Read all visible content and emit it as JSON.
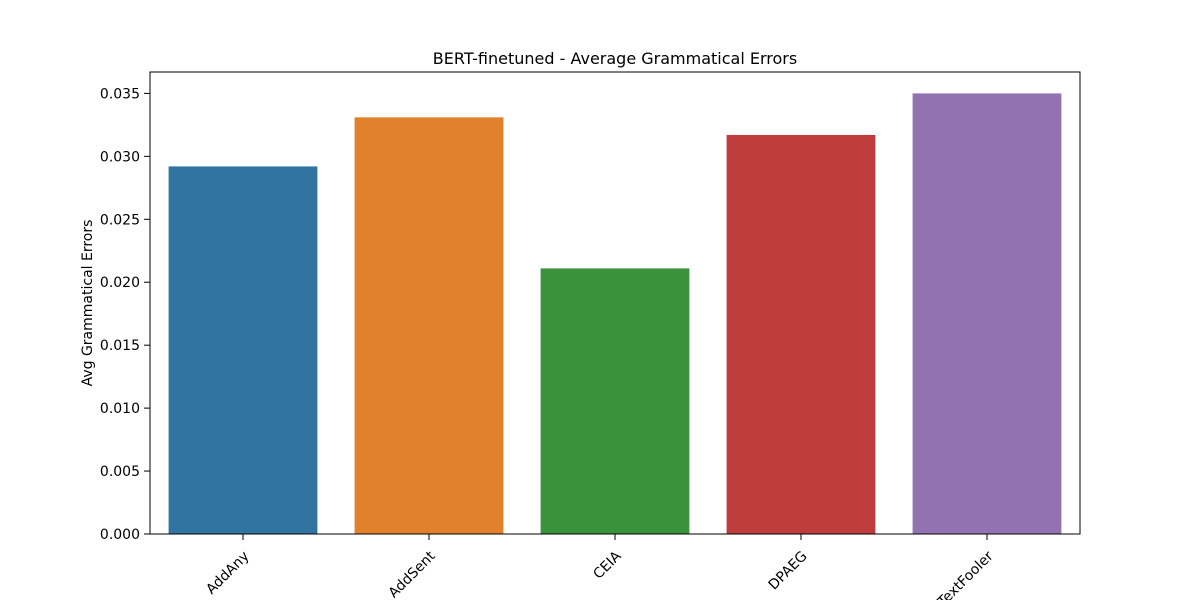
{
  "chart_data": {
    "type": "bar",
    "title": "BERT-finetuned - Average Grammatical Errors",
    "xlabel": "",
    "ylabel": "Avg Grammatical Errors",
    "categories": [
      "AddAny",
      "AddSent",
      "CEIA",
      "DPAEG",
      "TextFooler"
    ],
    "values": [
      0.0292,
      0.0331,
      0.0211,
      0.0317,
      0.035
    ],
    "colors": [
      "#3274a1",
      "#e1812c",
      "#3a923a",
      "#c03d3e",
      "#9372b2"
    ],
    "ylim": [
      0,
      0.0367
    ],
    "yticks": [
      0.0,
      0.005,
      0.01,
      0.015,
      0.02,
      0.025,
      0.03,
      0.035
    ],
    "ytick_labels": [
      "0.000",
      "0.005",
      "0.010",
      "0.015",
      "0.020",
      "0.025",
      "0.030",
      "0.035"
    ],
    "grid": false,
    "legend": "none"
  }
}
